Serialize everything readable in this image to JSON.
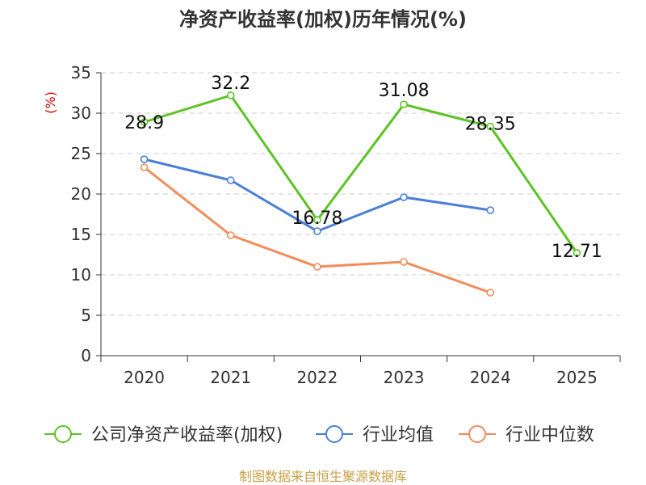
{
  "chart_data": {
    "type": "line",
    "title": "净资产收益率(加权)历年情况(%)",
    "ylabel": "(%)",
    "xlabel": "",
    "categories": [
      "2020",
      "2021",
      "2022",
      "2023",
      "2024",
      "2025"
    ],
    "ylim": [
      0,
      35
    ],
    "yticks": [
      0,
      5,
      10,
      15,
      20,
      25,
      30,
      35
    ],
    "grid": "horizontal-dashed",
    "legend_position": "bottom",
    "series": [
      {
        "name": "公司净资产收益率(加权)",
        "values": [
          28.9,
          32.2,
          16.78,
          31.08,
          28.35,
          12.71
        ],
        "labels": [
          "28.9",
          "32.2",
          "16.78",
          "31.08",
          "28.35",
          "12.71"
        ],
        "color": "#5bc424"
      },
      {
        "name": "行业均值",
        "values": [
          24.3,
          21.7,
          15.4,
          19.6,
          18.0,
          null
        ],
        "color": "#4a7fd8"
      },
      {
        "name": "行业中位数",
        "values": [
          23.3,
          14.9,
          11.0,
          11.6,
          7.8,
          null
        ],
        "color": "#f28c5a"
      }
    ]
  },
  "footer": {
    "source": "制图数据来自恒生聚源数据库",
    "color": "#c8a046"
  },
  "colors": {
    "axis": "#333333",
    "grid": "#cccccc",
    "ylabel": "#cc0000"
  }
}
